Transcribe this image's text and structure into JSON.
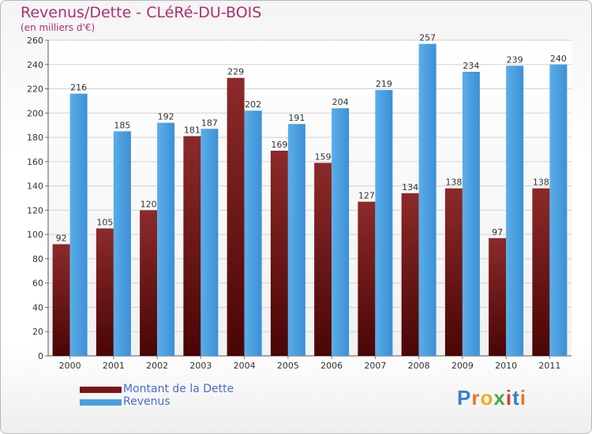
{
  "header": {
    "title": "Revenus/Dette - CLéRé-DU-BOIS",
    "subtitle": "(en milliers d'€)"
  },
  "legend": {
    "dette_label": "Montant de la Dette",
    "revenus_label": "Revenus"
  },
  "logo": {
    "text": "Proxiti"
  },
  "colors": {
    "dette": "#7a1515",
    "revenus": "#4a9fe0",
    "title": "#b0306a",
    "legend_text": "#4a6ccf"
  },
  "chart_data": {
    "type": "bar",
    "title": "Revenus/Dette - CLéRé-DU-BOIS",
    "subtitle": "(en milliers d'€)",
    "categories": [
      "2000",
      "2001",
      "2002",
      "2003",
      "2004",
      "2005",
      "2006",
      "2007",
      "2008",
      "2009",
      "2010",
      "2011"
    ],
    "series": [
      {
        "name": "Montant de la Dette",
        "values": [
          92,
          105,
          120,
          181,
          229,
          169,
          159,
          127,
          134,
          138,
          97,
          138
        ]
      },
      {
        "name": "Revenus",
        "values": [
          216,
          185,
          192,
          187,
          202,
          191,
          204,
          219,
          257,
          234,
          239,
          240
        ]
      }
    ],
    "ylim": [
      0,
      260
    ],
    "yticks": [
      0,
      20,
      40,
      60,
      80,
      100,
      120,
      140,
      160,
      180,
      200,
      220,
      240,
      260
    ],
    "grid": true,
    "legend_position": "bottom-left"
  }
}
